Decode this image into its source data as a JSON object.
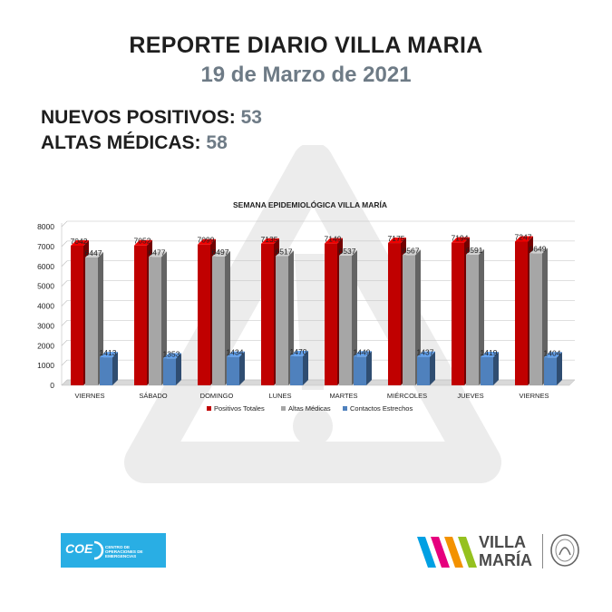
{
  "header": {
    "title": "REPORTE DIARIO VILLA MARIA",
    "date": "19 de Marzo de 2021"
  },
  "stats": {
    "new_positives_label": "NUEVOS POSITIVOS:",
    "new_positives_value": "53",
    "discharges_label": "ALTAS MÉDICAS:",
    "discharges_value": "58"
  },
  "chart_data": {
    "type": "bar",
    "title": "SEMANA EPIDEMIOLÓGICA VILLA MARÍA",
    "categories": [
      "VIERNES",
      "SÁBADO",
      "DOMINGO",
      "LUNES",
      "MARTES",
      "MIÉRCOLES",
      "JUEVES",
      "VIERNES"
    ],
    "series": [
      {
        "name": "Positivos Totales",
        "values": [
          7042,
          7052,
          7099,
          7135,
          7149,
          7175,
          7194,
          7247
        ],
        "color": "#c00000"
      },
      {
        "name": "Altas Médicas",
        "values": [
          6447,
          6477,
          6497,
          6517,
          6537,
          6567,
          6591,
          6649
        ],
        "color": "#a6a6a6"
      },
      {
        "name": "Contactos Estrechos",
        "values": [
          1413,
          1353,
          1434,
          1470,
          1449,
          1437,
          1419,
          1404
        ],
        "color": "#4f81bd"
      }
    ],
    "ylim": [
      0,
      8000
    ],
    "yticks": [
      0,
      1000,
      2000,
      3000,
      4000,
      5000,
      6000,
      7000,
      8000
    ],
    "grid": true,
    "legend": "bottom"
  },
  "logos": {
    "coe_text": "COE",
    "coe_subtitle": "CENTRO DE OPERACIONES DE EMERGENCIAS",
    "vm_line1": "VILLA",
    "vm_line2": "MARÍA",
    "vm_colors": [
      "#00a0e3",
      "#e6007e",
      "#f39200",
      "#95c11f"
    ]
  }
}
